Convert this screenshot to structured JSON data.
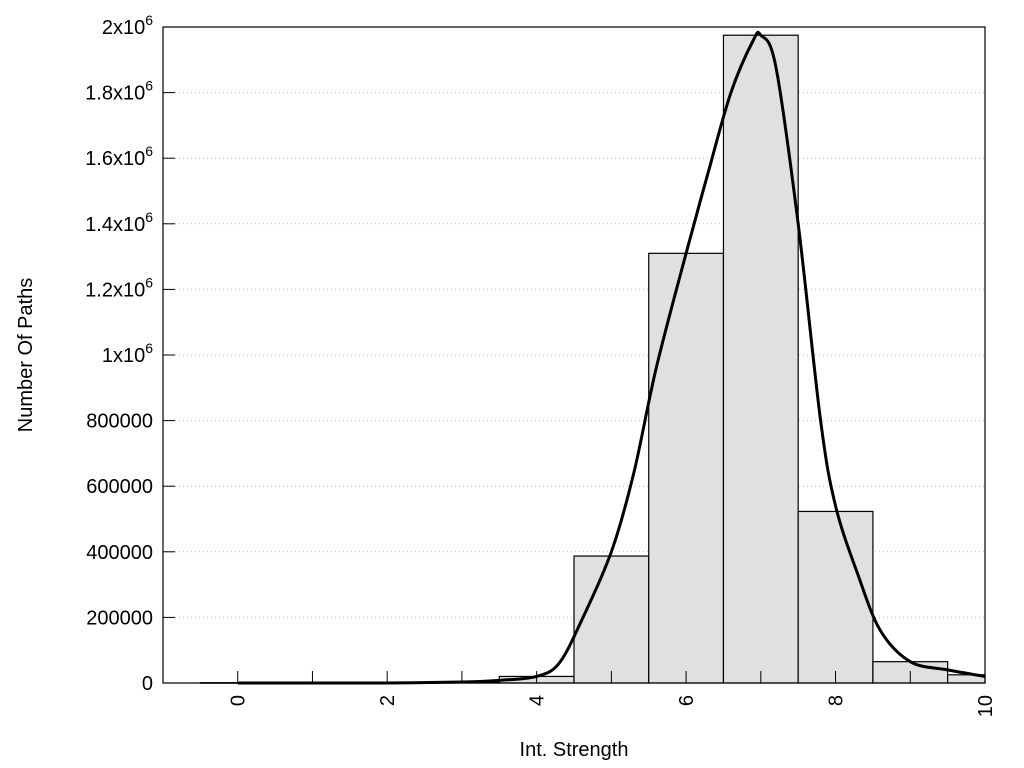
{
  "chart_data": {
    "type": "bar",
    "title": "",
    "xlabel": "Int. Strength",
    "ylabel": "Number Of Paths",
    "xlim": [
      -1,
      10
    ],
    "ylim": [
      0,
      2000000
    ],
    "grid": "horizontal dotted",
    "x_ticks": [
      {
        "value": 0,
        "label": "0"
      },
      {
        "value": 2,
        "label": "2"
      },
      {
        "value": 4,
        "label": "4"
      },
      {
        "value": 6,
        "label": "6"
      },
      {
        "value": 8,
        "label": "8"
      },
      {
        "value": 10,
        "label": "10"
      }
    ],
    "y_ticks": [
      {
        "value": 0,
        "label": "0"
      },
      {
        "value": 200000,
        "label": "200000"
      },
      {
        "value": 400000,
        "label": "400000"
      },
      {
        "value": 600000,
        "label": "600000"
      },
      {
        "value": 800000,
        "label": "800000"
      },
      {
        "value": 1000000,
        "base": "1x10",
        "exp": "6"
      },
      {
        "value": 1200000,
        "base": "1.2x10",
        "exp": "6"
      },
      {
        "value": 1400000,
        "base": "1.4x10",
        "exp": "6"
      },
      {
        "value": 1600000,
        "base": "1.6x10",
        "exp": "6"
      },
      {
        "value": 1800000,
        "base": "1.8x10",
        "exp": "6"
      },
      {
        "value": 2000000,
        "base": "2x10",
        "exp": "6"
      }
    ],
    "bar_width": 1,
    "bars": [
      {
        "x": 0,
        "value": 1000
      },
      {
        "x": 1,
        "value": 1000
      },
      {
        "x": 2,
        "value": 1000
      },
      {
        "x": 3,
        "value": 3000
      },
      {
        "x": 4,
        "value": 20000
      },
      {
        "x": 5,
        "value": 387000
      },
      {
        "x": 6,
        "value": 1310000
      },
      {
        "x": 7,
        "value": 1975000
      },
      {
        "x": 8,
        "value": 523000
      },
      {
        "x": 9,
        "value": 65000
      },
      {
        "x": 10,
        "value": 25000
      }
    ],
    "bar_fill": "#e0e0e0",
    "bar_stroke": "#000000",
    "curve_color": "#000000",
    "curve": [
      {
        "x": 0,
        "y": 0
      },
      {
        "x": 1,
        "y": 0
      },
      {
        "x": 2,
        "y": 0
      },
      {
        "x": 3,
        "y": 3000
      },
      {
        "x": 3.5,
        "y": 8000
      },
      {
        "x": 4,
        "y": 20000
      },
      {
        "x": 4.3,
        "y": 60000
      },
      {
        "x": 4.6,
        "y": 190000
      },
      {
        "x": 5,
        "y": 400000
      },
      {
        "x": 5.3,
        "y": 640000
      },
      {
        "x": 5.6,
        "y": 960000
      },
      {
        "x": 6,
        "y": 1310000
      },
      {
        "x": 6.3,
        "y": 1560000
      },
      {
        "x": 6.6,
        "y": 1800000
      },
      {
        "x": 6.9,
        "y": 1960000
      },
      {
        "x": 7,
        "y": 1975000
      },
      {
        "x": 7.2,
        "y": 1880000
      },
      {
        "x": 7.5,
        "y": 1400000
      },
      {
        "x": 7.8,
        "y": 800000
      },
      {
        "x": 8,
        "y": 540000
      },
      {
        "x": 8.3,
        "y": 330000
      },
      {
        "x": 8.6,
        "y": 160000
      },
      {
        "x": 9,
        "y": 65000
      },
      {
        "x": 9.5,
        "y": 40000
      },
      {
        "x": 10,
        "y": 20000
      }
    ]
  }
}
